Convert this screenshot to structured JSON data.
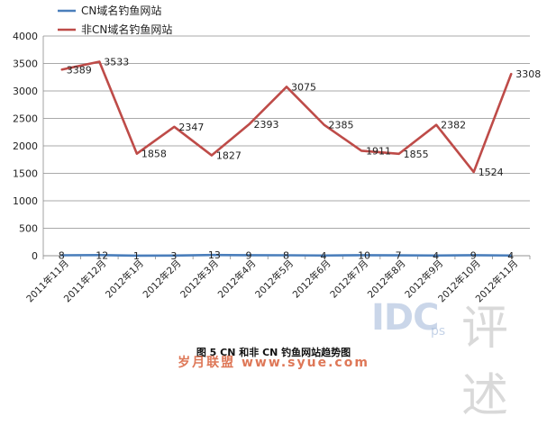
{
  "chart_data": {
    "type": "line",
    "categories": [
      "2011年11月",
      "2011年12月",
      "2012年1月",
      "2012年2月",
      "2012年3月",
      "2012年4月",
      "2012年5月",
      "2012年6月",
      "2012年7月",
      "2012年8月",
      "2012年9月",
      "2012年10月",
      "2012年11月"
    ],
    "series": [
      {
        "name": "CN域名钓鱼网站",
        "color": "#4a7ebb",
        "values": [
          8,
          12,
          1,
          3,
          13,
          9,
          8,
          4,
          10,
          7,
          4,
          9,
          4
        ]
      },
      {
        "name": "非CN域名钓鱼网站",
        "color": "#be4b48",
        "values": [
          3389,
          3533,
          1858,
          2347,
          1827,
          2393,
          3075,
          2385,
          1911,
          1855,
          2382,
          1524,
          3308
        ]
      }
    ],
    "y_ticks": [
      0,
      500,
      1000,
      1500,
      2000,
      2500,
      3000,
      3500,
      4000
    ],
    "ylim": [
      0,
      4000
    ],
    "grid": "horizontal",
    "legend_position": "top-left",
    "caption": "图 5 CN 和非 CN 钓鱼网站趋势图"
  },
  "watermark": {
    "brand": "IDC",
    "brand_small": "ps",
    "brand_cn": "评述",
    "site": "岁月联盟  www.syue.com"
  }
}
